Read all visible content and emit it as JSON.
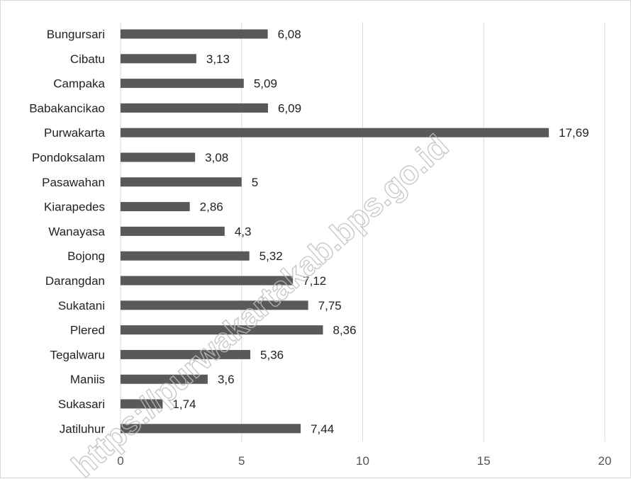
{
  "chart_data": {
    "type": "bar",
    "orientation": "horizontal",
    "categories": [
      "Bungursari",
      "Cibatu",
      "Campaka",
      "Babakancikao",
      "Purwakarta",
      "Pondoksalam",
      "Pasawahan",
      "Kiarapedes",
      "Wanayasa",
      "Bojong",
      "Darangdan",
      "Sukatani",
      "Plered",
      "Tegalwaru",
      "Maniis",
      "Sukasari",
      "Jatiluhur"
    ],
    "values": [
      6.08,
      3.13,
      5.09,
      6.09,
      17.69,
      3.08,
      5,
      2.86,
      4.3,
      5.32,
      7.12,
      7.75,
      8.36,
      5.36,
      3.6,
      1.74,
      7.44
    ],
    "value_labels": [
      "6,08",
      "3,13",
      "5,09",
      "6,09",
      "17,69",
      "3,08",
      "5",
      "2,86",
      "4,3",
      "5,32",
      "7,12",
      "7,75",
      "8,36",
      "5,36",
      "3,6",
      "1,74",
      "7,44"
    ],
    "xlim": [
      0,
      20
    ],
    "xticks": [
      0,
      5,
      10,
      15,
      20
    ],
    "xtick_labels": [
      "0",
      "5",
      "10",
      "15",
      "20"
    ],
    "grid": true,
    "bar_color": "#595959",
    "title": "",
    "xlabel": "",
    "ylabel": ""
  },
  "watermark": {
    "text": "https://purwakartakab.bps.go.id"
  }
}
